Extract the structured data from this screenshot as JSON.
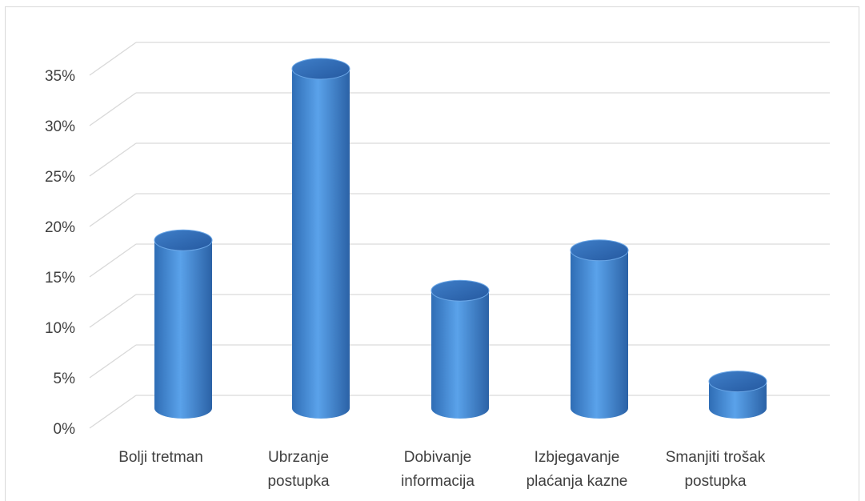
{
  "chart_data": {
    "type": "bar",
    "style": "3d-cylinder",
    "categories": [
      [
        "Bolji tretman"
      ],
      [
        "Ubrzanje",
        "postupka"
      ],
      [
        "Dobivanje",
        "informacija"
      ],
      [
        "Izbjegavanje",
        "plaćanja kazne"
      ],
      [
        "Smanjiti trošak",
        "postupka"
      ]
    ],
    "values": [
      18,
      35,
      13,
      17,
      4
    ],
    "y_ticks": [
      "0%",
      "5%",
      "10%",
      "15%",
      "20%",
      "25%",
      "30%",
      "35%"
    ],
    "ylim": [
      0,
      35
    ],
    "grid": true,
    "bar_color": "#4a8fd6",
    "gridline_color": "#d9d9d9"
  }
}
